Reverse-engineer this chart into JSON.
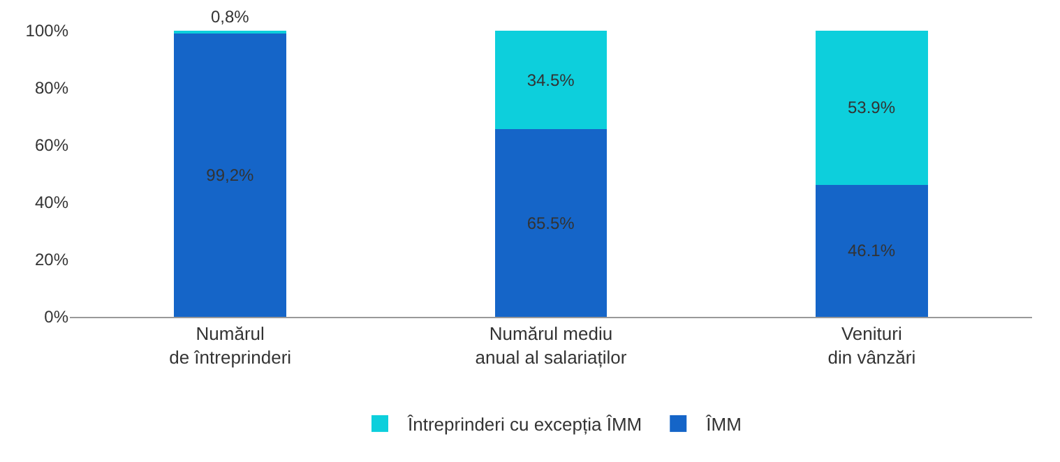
{
  "chart_data": {
    "type": "bar",
    "stacked": true,
    "categories": [
      "Numărul\nde întreprinderi",
      "Numărul mediu\nanual al salariaților",
      "Venituri\ndin vânzări"
    ],
    "series": [
      {
        "name": "ÎMM",
        "color": "#1565c8",
        "values": [
          99.2,
          65.5,
          46.1
        ],
        "value_labels": [
          "99,2%",
          "65.5%",
          "46.1%"
        ]
      },
      {
        "name": "Întreprinderi cu excepția ÎMM",
        "color": "#0dcfdc",
        "values": [
          0.8,
          34.5,
          53.9
        ],
        "value_labels": [
          "0,8%",
          "34.5%",
          "53.9%"
        ]
      }
    ],
    "ylim": [
      0,
      100
    ],
    "yticks": [
      {
        "value": 0,
        "label": "0%"
      },
      {
        "value": 20,
        "label": "20%"
      },
      {
        "value": 40,
        "label": "40%"
      },
      {
        "value": 60,
        "label": "60%"
      },
      {
        "value": 80,
        "label": "80%"
      },
      {
        "value": 100,
        "label": "100%"
      }
    ],
    "grid": false,
    "legend": "bottom"
  }
}
